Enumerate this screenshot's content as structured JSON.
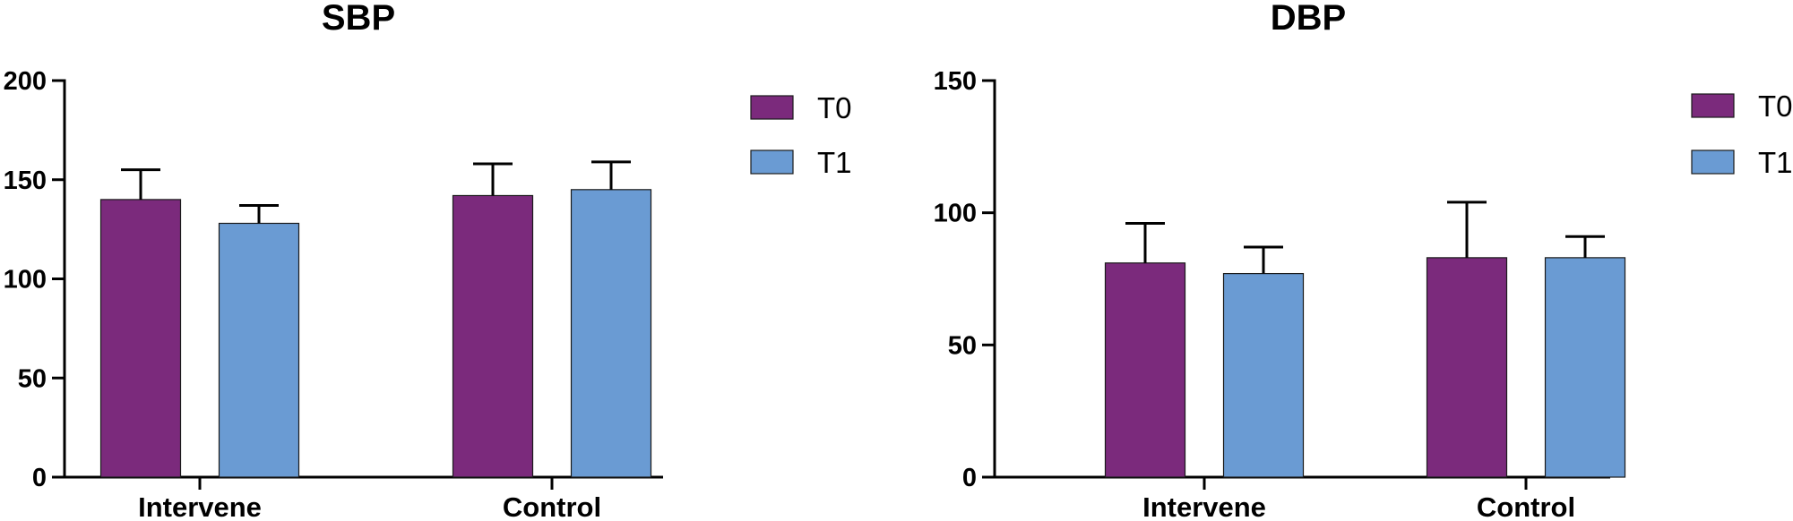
{
  "chart_data": [
    {
      "type": "bar",
      "title": "SBP",
      "xlabel": "",
      "ylabel": "",
      "categories": [
        "Intervene",
        "Control"
      ],
      "ylim": [
        0,
        200
      ],
      "yticks": [
        0,
        50,
        100,
        150,
        200
      ],
      "series": [
        {
          "name": "T0",
          "values": [
            140,
            142
          ],
          "error": [
            15,
            16
          ],
          "color": "#7b2a7c"
        },
        {
          "name": "T1",
          "values": [
            128,
            145
          ],
          "error": [
            9,
            14
          ],
          "color": "#6a9bd3"
        }
      ],
      "legend": "right",
      "grid": false
    },
    {
      "type": "bar",
      "title": "DBP",
      "xlabel": "",
      "ylabel": "",
      "categories": [
        "Intervene",
        "Control"
      ],
      "ylim": [
        0,
        150
      ],
      "yticks": [
        0,
        50,
        100,
        150
      ],
      "series": [
        {
          "name": "T0",
          "values": [
            81,
            83
          ],
          "error": [
            15,
            21
          ],
          "color": "#7b2a7c"
        },
        {
          "name": "T1",
          "values": [
            77,
            83
          ],
          "error": [
            10,
            8
          ],
          "color": "#6a9bd3"
        }
      ],
      "legend": "right",
      "grid": false
    }
  ]
}
